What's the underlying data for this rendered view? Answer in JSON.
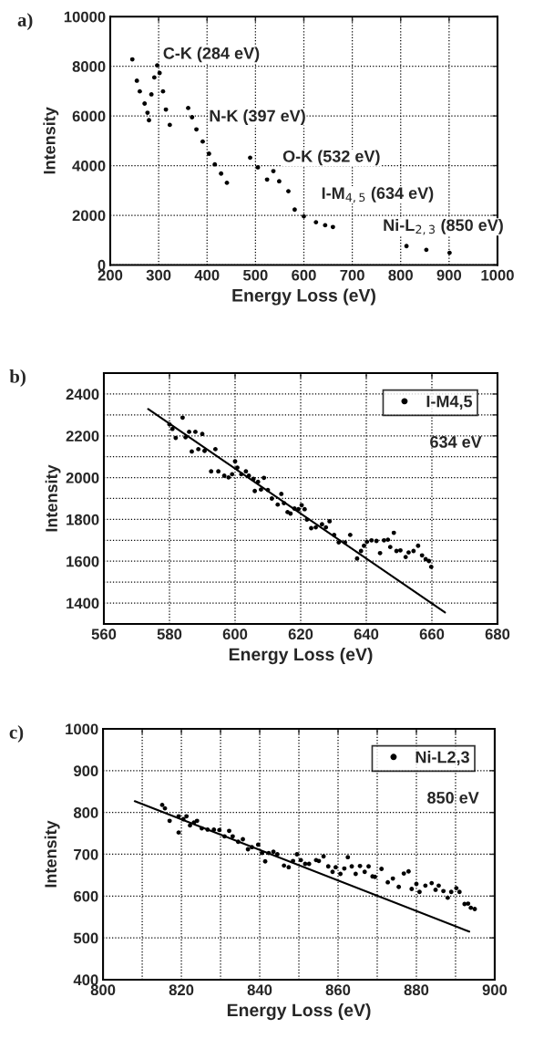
{
  "chart_data": [
    {
      "type": "scatter",
      "title": "a)",
      "xlabel": "Energy Loss (eV)",
      "ylabel": "Intensity",
      "xlim": [
        200,
        1000
      ],
      "ylim": [
        0,
        10000
      ],
      "xticks": [
        200,
        300,
        400,
        500,
        600,
        700,
        800,
        900,
        1000
      ],
      "yticks": [
        0,
        2000,
        4000,
        6000,
        8000,
        10000
      ],
      "grid": true,
      "marker": "circle",
      "series": [
        {
          "color": "#000000",
          "x": [
            245.6,
            255,
            261,
            271,
            277,
            280,
            285,
            291,
            297,
            302,
            309,
            315,
            323,
            361,
            369,
            378,
            391,
            404,
            416,
            429,
            441,
            489,
            505,
            524,
            537,
            549,
            568,
            581,
            600,
            625,
            644,
            660,
            812,
            853,
            901
          ],
          "values": [
            8280,
            7420,
            6990,
            6500,
            6130,
            5830,
            6870,
            7550,
            8040,
            7730,
            6990,
            6260,
            5640,
            6320,
            5950,
            5460,
            4970,
            4480,
            4050,
            3680,
            3310,
            4320,
            3930,
            3440,
            3780,
            3370,
            2970,
            2230,
            1960,
            1720,
            1600,
            1530,
            760,
            610,
            490
          ]
        }
      ],
      "annotations": [
        "C-K (284 eV)",
        "N-K (397 eV)",
        "O-K (532 eV)",
        "I-M$_{4,5}$ (634 eV)",
        "Ni-L$_{2,3}$ (850 eV)"
      ]
    },
    {
      "type": "scatter",
      "title": "b)",
      "xlabel": "Energy Loss (eV)",
      "ylabel": "Intensity",
      "xlim": [
        560,
        680
      ],
      "ylim": [
        1300,
        2500
      ],
      "xticks": [
        560,
        580,
        600,
        620,
        640,
        660,
        680
      ],
      "yticks": [
        1400,
        {
          "value": 1500,
          "label": null
        },
        1600,
        {
          "value": 1700,
          "label": null
        },
        1800,
        {
          "value": 1900,
          "label": null
        },
        2000,
        {
          "value": 2100,
          "label": null
        },
        2200,
        {
          "value": 2300,
          "label": null
        },
        2400
      ],
      "grid": true,
      "legend": "top right",
      "series": [
        {
          "name": "I-M4,5",
          "color": "#000000",
          "marker": "circle",
          "x": [
            580.0,
            580.9,
            581.9,
            584.0,
            584.9,
            586.0,
            587.9,
            590.0,
            586.8,
            588.8,
            590.7,
            594.0,
            592.7,
            594.9,
            596.7,
            598.0,
            599.1,
            600.0,
            600.7,
            601.9,
            603.3,
            604.2,
            605.6,
            607.0,
            606.0,
            607.9,
            608.8,
            610.0,
            611.2,
            613.0,
            614.1,
            614.9,
            616.0,
            616.9,
            618.1,
            619.3,
            620.3,
            621.2,
            621.9,
            623.2,
            624.6,
            626.5,
            627.7,
            628.8,
            630.2,
            631.6,
            633.5,
            635.1,
            637.2,
            638.4,
            639.3,
            640.2,
            641.6,
            643.1,
            644.2,
            645.4,
            646.6,
            647.3,
            648.4,
            649.2,
            650.4,
            652.0,
            652.9,
            654.4,
            655.8,
            657.0,
            658.1,
            659.1,
            659.8
          ],
          "values": [
            2255,
            2233,
            2190,
            2287,
            2193,
            2219,
            2219,
            2209,
            2125,
            2136,
            2128,
            2136,
            2030,
            2030,
            2009,
            2001,
            2016,
            2078,
            2048,
            2016,
            2030,
            2009,
            1994,
            1980,
            1936,
            1943,
            1999,
            1941,
            1900,
            1871,
            1922,
            1878,
            1835,
            1828,
            1852,
            1849,
            1868,
            1849,
            1799,
            1758,
            1762,
            1777,
            1762,
            1791,
            1726,
            1690,
            1690,
            1726,
            1613,
            1649,
            1674,
            1693,
            1700,
            1697,
            1639,
            1700,
            1703,
            1668,
            1736,
            1649,
            1652,
            1620,
            1642,
            1649,
            1674,
            1628,
            1610,
            1601,
            1573
          ]
        },
        {
          "type": "line",
          "color": "#000000",
          "marker": "none",
          "x": [
            573.5,
            664
          ],
          "values": [
            2328,
            1355
          ]
        }
      ],
      "annotations": [
        "634 eV"
      ]
    },
    {
      "type": "scatter",
      "title": "c)",
      "xlabel": "Energy Loss (eV)",
      "ylabel": "Intensity",
      "xlim": [
        800,
        900
      ],
      "ylim": [
        400,
        1000
      ],
      "xticks": [
        800,
        {
          "value": 810,
          "label": null
        },
        820,
        {
          "value": 830,
          "label": null
        },
        840,
        {
          "value": 850,
          "label": null
        },
        860,
        {
          "value": 870,
          "label": null
        },
        880,
        {
          "value": 890,
          "label": null
        },
        900
      ],
      "yticks": [
        400,
        500,
        600,
        700,
        800,
        900,
        1000
      ],
      "grid": true,
      "legend": "top right",
      "series": [
        {
          "name": "Ni-L2,3",
          "color": "#000000",
          "marker": "circle",
          "x": [
            815.1,
            815.8,
            817.0,
            819.3,
            819.3,
            820.5,
            821.3,
            822.2,
            823.2,
            824.0,
            825.2,
            826.7,
            828.3,
            829.7,
            831.0,
            832.2,
            833.1,
            834.5,
            835.7,
            837.0,
            838.0,
            839.6,
            840.6,
            841.4,
            842.3,
            843.5,
            844.5,
            846.2,
            847.4,
            848.5,
            849.5,
            850.5,
            851.6,
            852.6,
            854.4,
            855.1,
            856.3,
            857.5,
            858.6,
            859.4,
            860.6,
            861.6,
            862.5,
            863.5,
            864.5,
            865.6,
            866.8,
            867.8,
            868.8,
            869.4,
            871.1,
            872.7,
            874.0,
            875.5,
            876.8,
            878.0,
            878.8,
            880.0,
            880.8,
            882.3,
            883.9,
            884.9,
            885.7,
            886.9,
            888.0,
            888.9,
            890.2,
            891.0,
            892.3,
            893.2,
            893.9,
            894.9
          ],
          "values": [
            818,
            810,
            780,
            752,
            791,
            784,
            791,
            769,
            776,
            780,
            762,
            759,
            759,
            758,
            743,
            756,
            743,
            730,
            736,
            712,
            717,
            723,
            703,
            683,
            703,
            706,
            700,
            673,
            669,
            684,
            700,
            686,
            677,
            677,
            686,
            684,
            695,
            671,
            658,
            669,
            653,
            666,
            693,
            671,
            653,
            672,
            658,
            671,
            647,
            646,
            665,
            633,
            642,
            622,
            654,
            659,
            617,
            629,
            610,
            625,
            631,
            615,
            625,
            612,
            596,
            610,
            619,
            610,
            581,
            582,
            572,
            569
          ]
        },
        {
          "type": "line",
          "color": "#000000",
          "marker": "none",
          "x": [
            808.1,
            893.5
          ],
          "values": [
            827,
            515
          ]
        }
      ],
      "annotations": [
        "850 eV"
      ]
    }
  ]
}
